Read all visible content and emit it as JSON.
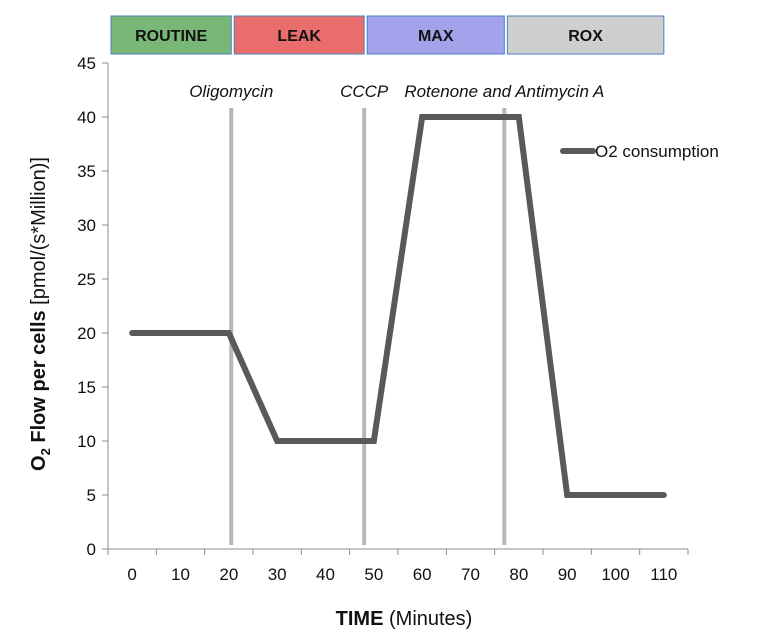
{
  "chart_data": {
    "type": "line",
    "title": "",
    "xlabel_bold": "TIME",
    "xlabel_rest": " (Minutes)",
    "ylabel_o": "O",
    "ylabel_sub": "2",
    "ylabel_bold_rest": " Flow per cells",
    "ylabel_unit": " [pmol/(s*Million)]",
    "xlim": [
      -5,
      115
    ],
    "ylim": [
      0,
      45
    ],
    "x_ticks": [
      0,
      10,
      20,
      30,
      40,
      50,
      60,
      70,
      80,
      90,
      100,
      110
    ],
    "y_ticks": [
      0,
      5,
      10,
      15,
      20,
      25,
      30,
      35,
      40,
      45
    ],
    "series": [
      {
        "name": "O2 consumption",
        "color": "#595959",
        "x": [
          0,
          20,
          30,
          50,
          60,
          80,
          90,
          110
        ],
        "y": [
          20,
          20,
          10,
          10,
          40,
          40,
          5,
          5
        ]
      }
    ],
    "legend": {
      "position": "top-right",
      "label": "O2 consumption"
    },
    "injections": [
      {
        "label": "Oligomycin",
        "x": 20.5
      },
      {
        "label": "CCCP",
        "x": 48
      },
      {
        "label": "Rotenone and Antimycin A",
        "x": 77
      }
    ],
    "phases": [
      {
        "label": "ROUTINE",
        "start": -5,
        "end": 20.5,
        "color": "#79b779",
        "bold": true
      },
      {
        "label": "LEAK",
        "start": 20.5,
        "end": 48,
        "color": "#ea6d6d",
        "bold": true
      },
      {
        "label": "MAX",
        "start": 48,
        "end": 77,
        "color": "#a3a3ec",
        "bold": true
      },
      {
        "label": "ROX",
        "start": 77,
        "end": 110,
        "color": "#cfcfcf",
        "bold": true
      }
    ],
    "colors": {
      "phase_border": "#4a7fc0",
      "injection_line": "#b8b8b8",
      "axis": "#8c8c8c"
    }
  }
}
